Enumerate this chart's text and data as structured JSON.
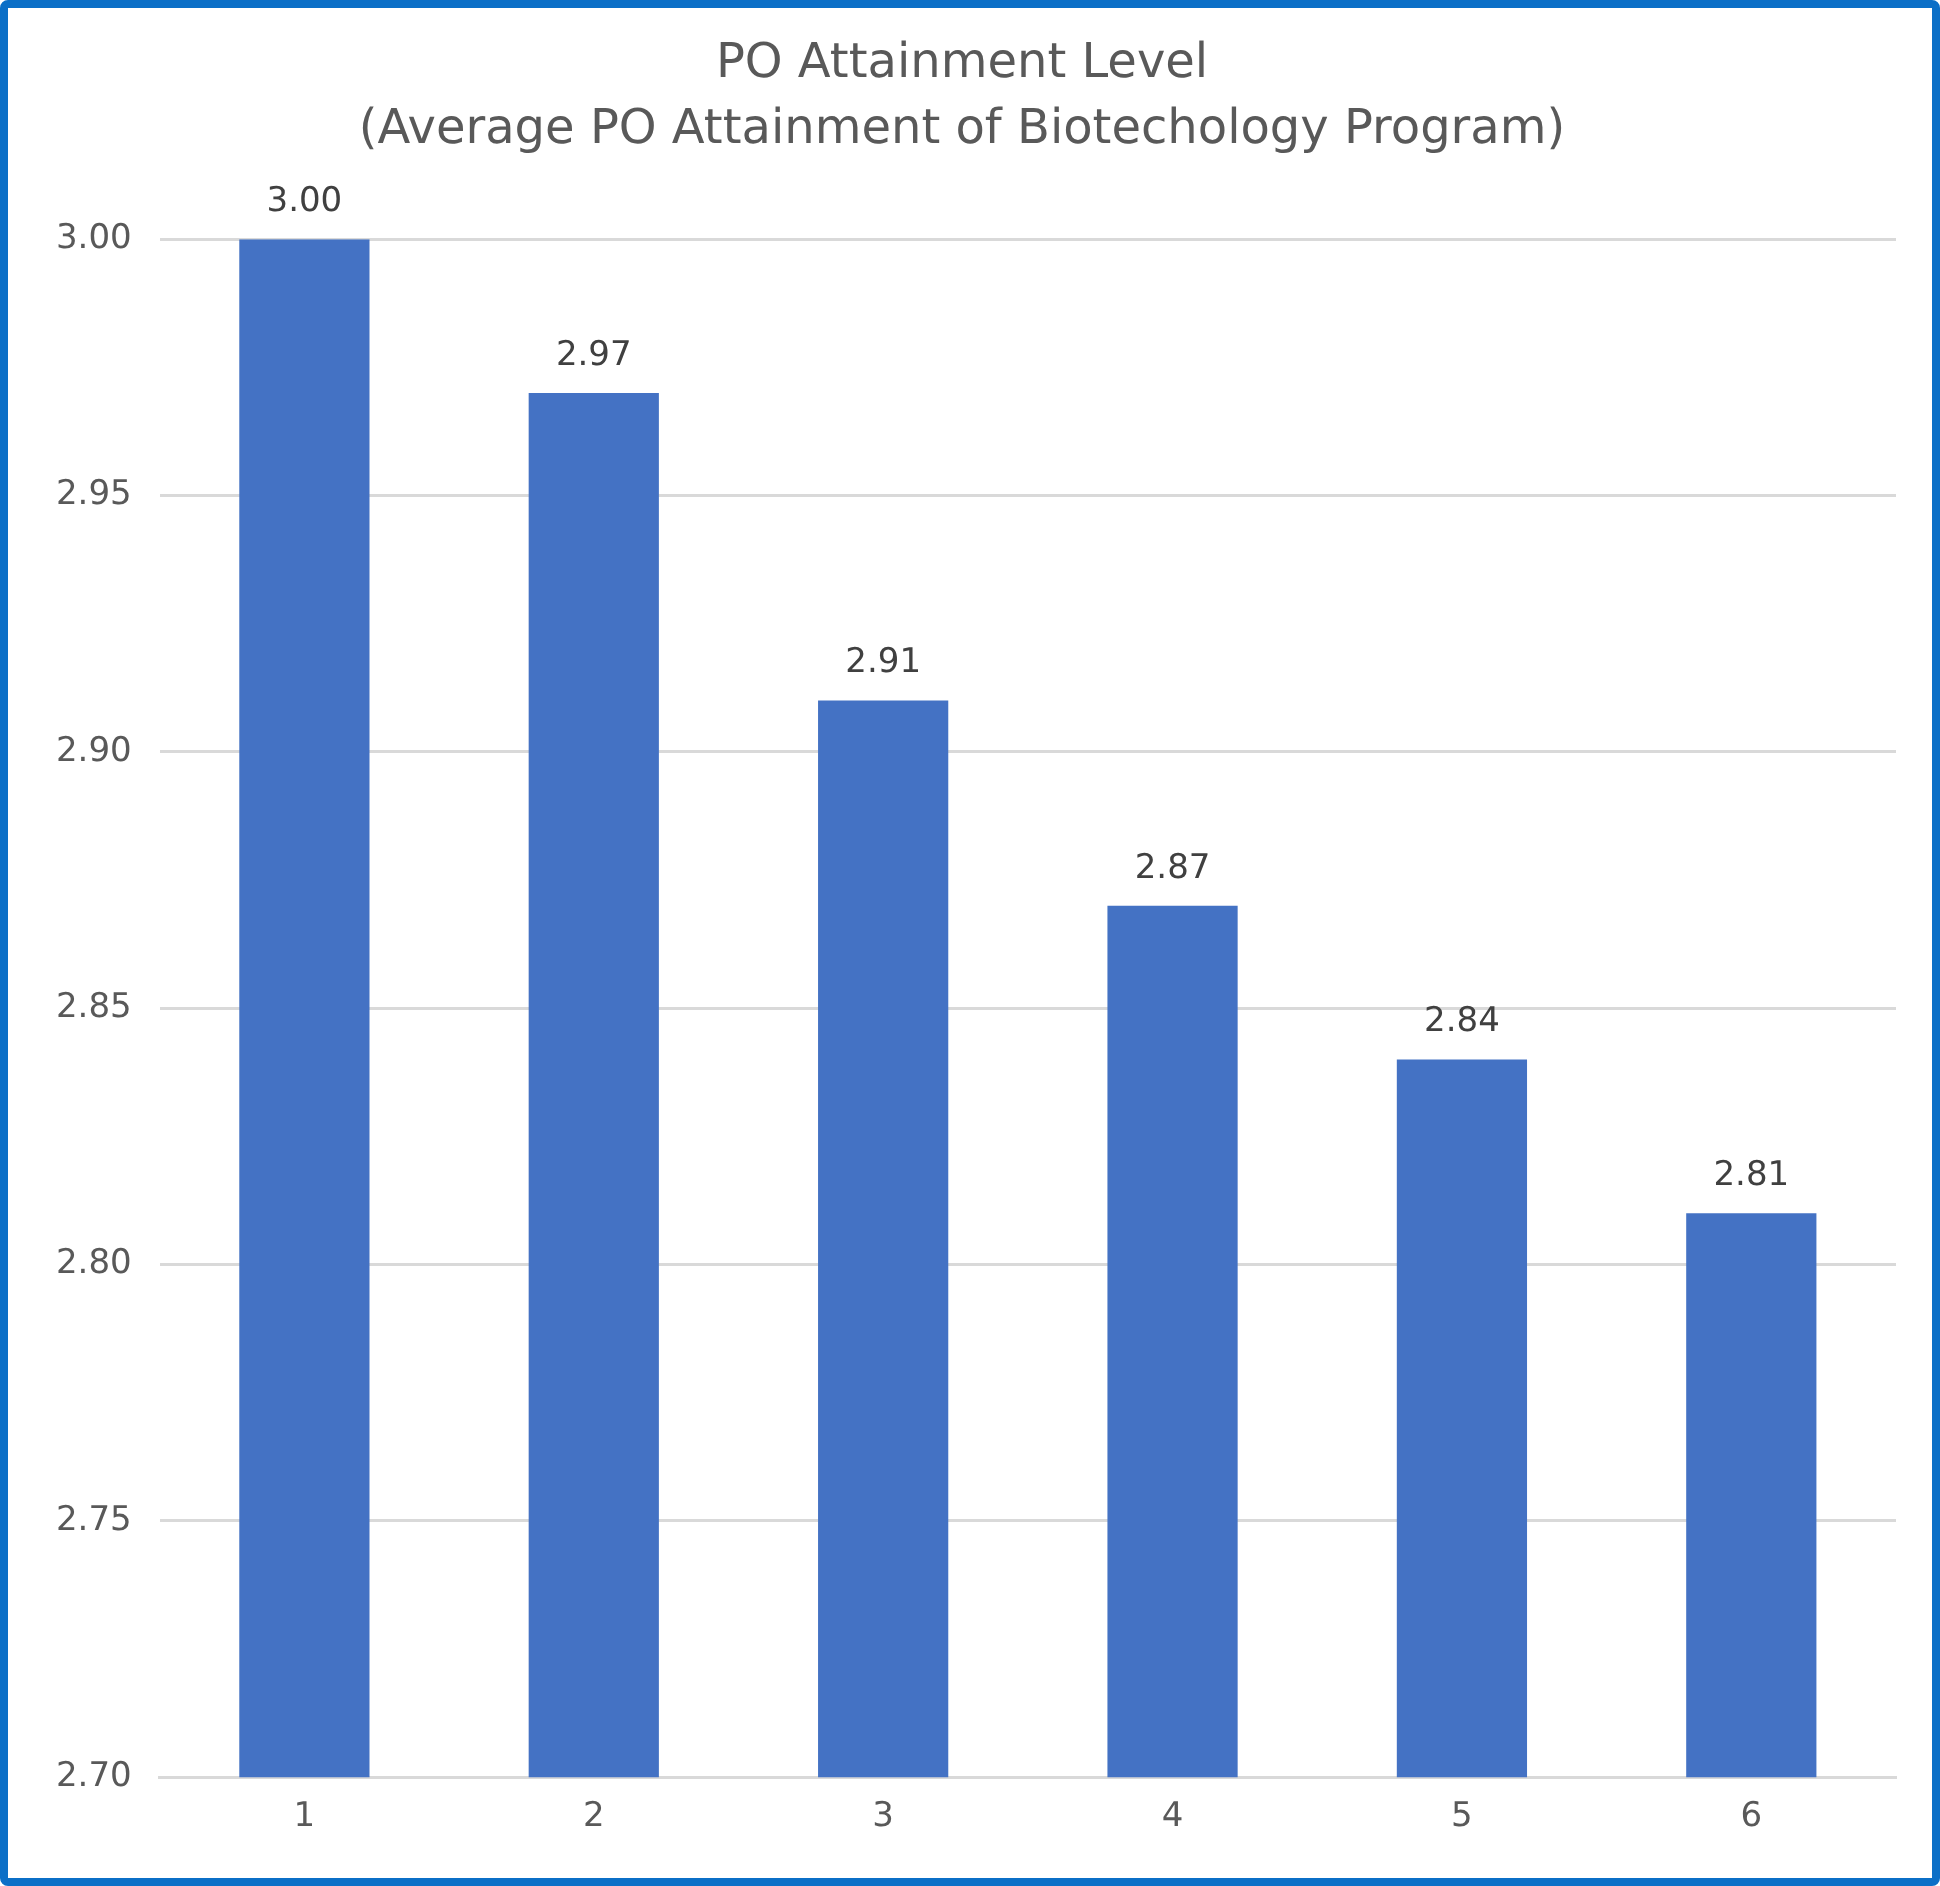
{
  "chart_data": {
    "type": "bar",
    "title": "PO Attainment Level",
    "subtitle": "(Average PO Attainment of Biotechology Program)",
    "categories": [
      "1",
      "2",
      "3",
      "4",
      "5",
      "6"
    ],
    "values": [
      3.0,
      2.97,
      2.91,
      2.87,
      2.84,
      2.81
    ],
    "color": "#4472c4",
    "value_labels": [
      "3.00",
      "2.97",
      "2.91",
      "2.87",
      "2.84",
      "2.81"
    ],
    "ylim": [
      2.7,
      3.0
    ],
    "yticks": [
      {
        "value": 2.7,
        "label": "2.70"
      },
      {
        "value": 2.75,
        "label": "2.75"
      },
      {
        "value": 2.8,
        "label": "2.80"
      },
      {
        "value": 2.85,
        "label": "2.85"
      },
      {
        "value": 2.9,
        "label": "2.90"
      },
      {
        "value": 2.95,
        "label": "2.95"
      },
      {
        "value": 3.0,
        "label": "3.00"
      }
    ],
    "grid": "y",
    "legend": false
  }
}
